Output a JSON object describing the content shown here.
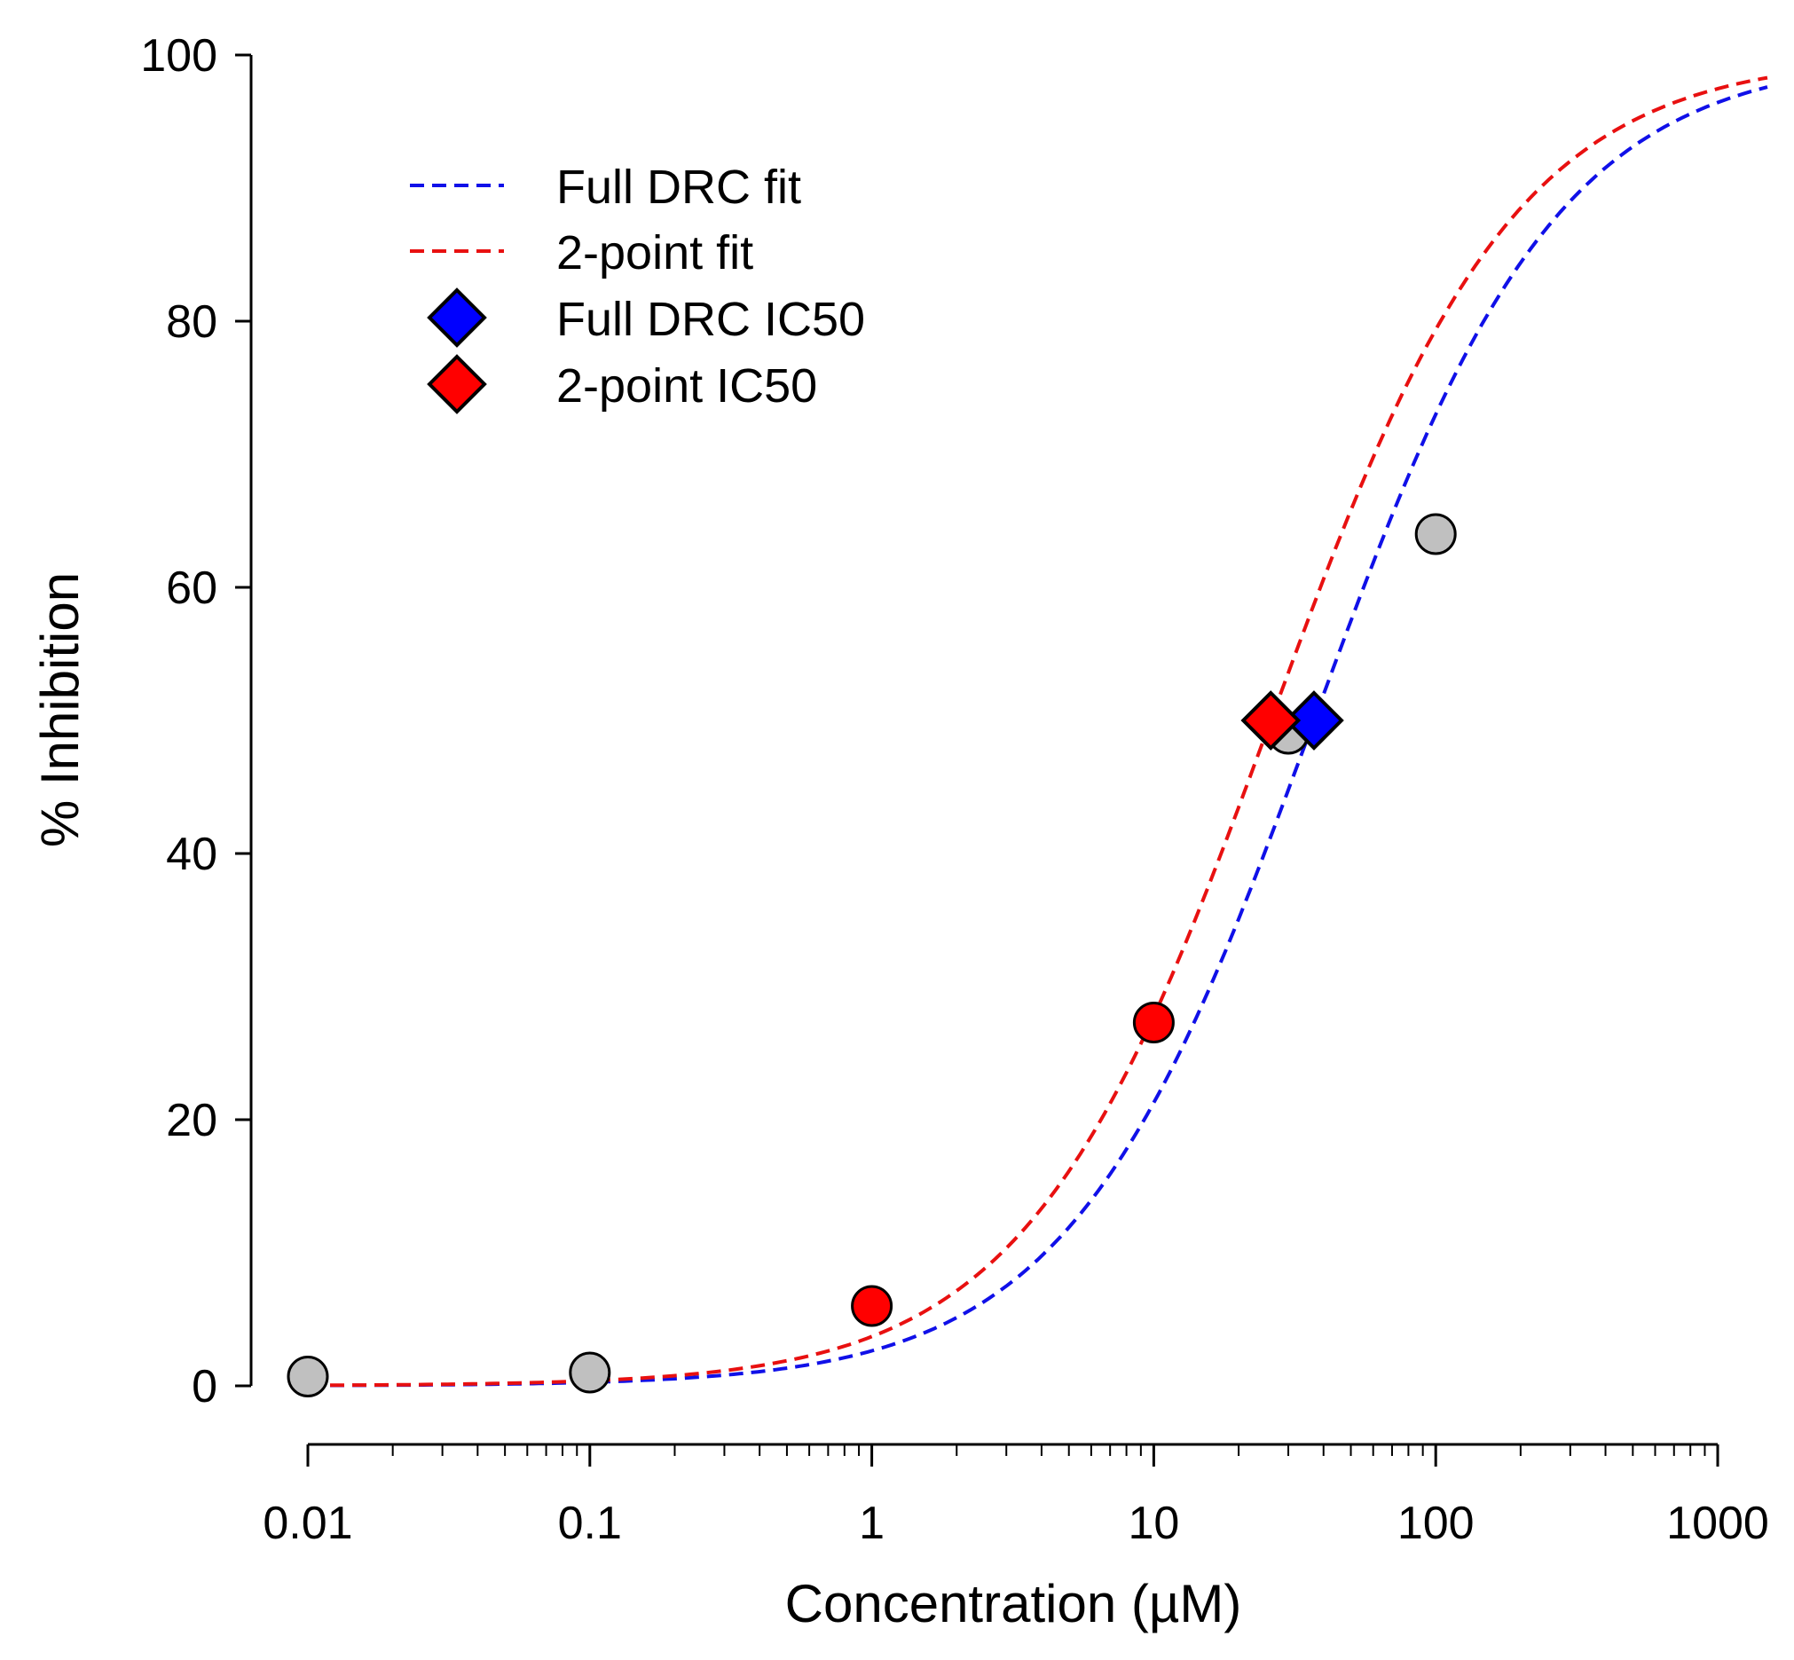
{
  "chart_data": {
    "type": "scatter",
    "xlabel": "Concentration (µM)",
    "ylabel": "% Inhibition",
    "x_scale": "log",
    "xlim": [
      0.01,
      1500
    ],
    "ylim": [
      0,
      100
    ],
    "x_ticks": [
      {
        "value": 0.01,
        "label": "0.01"
      },
      {
        "value": 0.1,
        "label": "0.1"
      },
      {
        "value": 1,
        "label": "1"
      },
      {
        "value": 10,
        "label": "10"
      },
      {
        "value": 100,
        "label": "100"
      },
      {
        "value": 1000,
        "label": "1000"
      }
    ],
    "y_ticks": [
      {
        "value": 0,
        "label": "0"
      },
      {
        "value": 20,
        "label": "20"
      },
      {
        "value": 40,
        "label": "40"
      },
      {
        "value": 60,
        "label": "60"
      },
      {
        "value": 80,
        "label": "80"
      },
      {
        "value": 100,
        "label": "100"
      }
    ],
    "grid": false,
    "legend_position": "top-left",
    "colors": {
      "full_fit": "#1010e8",
      "two_point_fit": "#e81010",
      "point_gray": "#c0c0c0",
      "point_red": "#ff0000",
      "diamond_blue": "#0000ff",
      "diamond_red": "#ff0000"
    },
    "series": [
      {
        "name": "Full DRC fit",
        "kind": "dashed-line",
        "color": "#1010e8",
        "ic50": 37,
        "hill": 1.0,
        "x_range": [
          0.01,
          1500
        ]
      },
      {
        "name": "2-point fit",
        "kind": "dashed-line",
        "color": "#e81010",
        "ic50": 26,
        "hill": 1.0,
        "x_range": [
          0.01,
          1500
        ]
      },
      {
        "name": "Full DRC IC50",
        "kind": "diamond",
        "color": "#0000ff",
        "x": 37,
        "y": 50
      },
      {
        "name": "2-point IC50",
        "kind": "diamond",
        "color": "#ff0000",
        "x": 26,
        "y": 50
      }
    ],
    "data_points": [
      {
        "x": 0.01,
        "y": 0.7,
        "color": "#c0c0c0"
      },
      {
        "x": 0.1,
        "y": 1.0,
        "color": "#c0c0c0"
      },
      {
        "x": 30,
        "y": 49,
        "color": "#c0c0c0"
      },
      {
        "x": 100,
        "y": 64,
        "color": "#c0c0c0"
      },
      {
        "x": 1,
        "y": 6,
        "color": "#ff0000"
      },
      {
        "x": 10,
        "y": 27.3,
        "color": "#ff0000"
      }
    ]
  }
}
